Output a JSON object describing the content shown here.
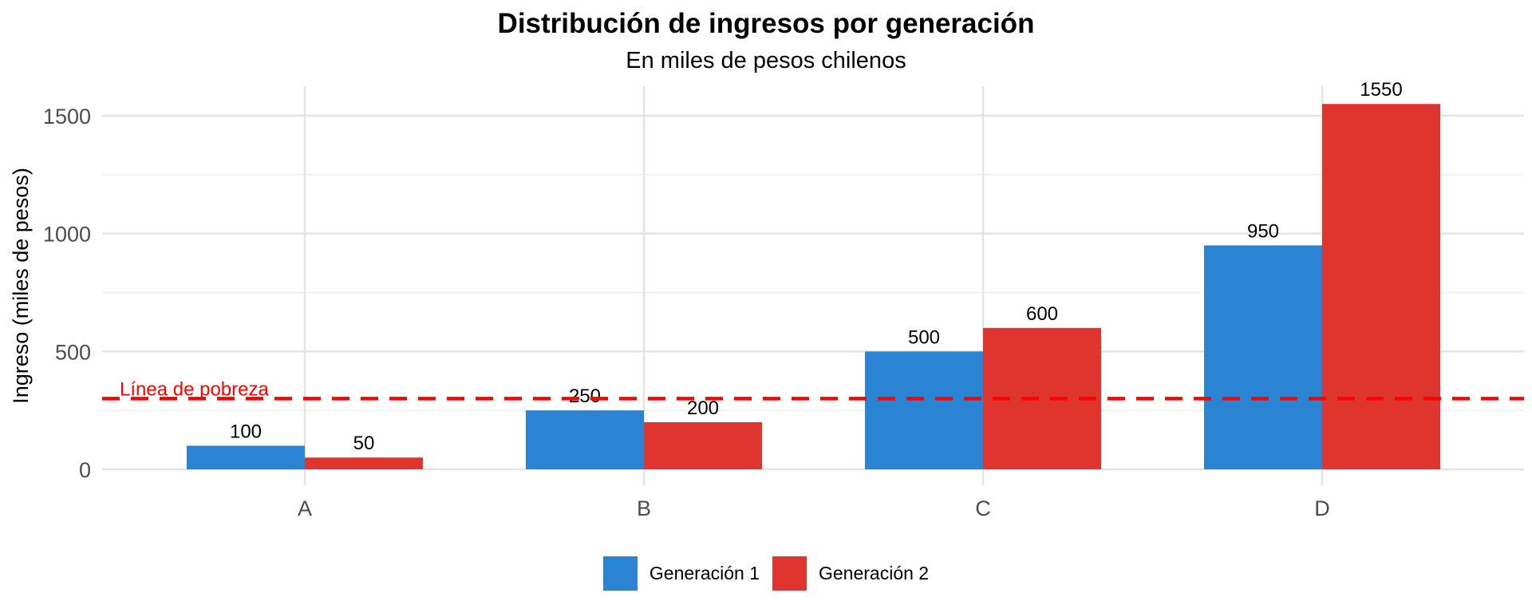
{
  "chart_data": {
    "type": "bar",
    "title": "Distribución de ingresos por generación",
    "subtitle": "En miles de pesos chilenos",
    "xlabel": "",
    "ylabel": "Ingreso (miles de pesos)",
    "categories": [
      "A",
      "B",
      "C",
      "D"
    ],
    "series": [
      {
        "name": "Generación 1",
        "color": "#2B84D3",
        "values": [
          100,
          250,
          500,
          950
        ],
        "labels": [
          "100",
          "250",
          "500",
          "950"
        ]
      },
      {
        "name": "Generación 2",
        "color": "#E0342F",
        "values": [
          50,
          200,
          600,
          1550
        ],
        "labels": [
          "50",
          "200",
          "600",
          "1550"
        ]
      }
    ],
    "ylim": [
      -80,
      1630
    ],
    "yticks": [
      0,
      500,
      1000,
      1500
    ],
    "ytick_labels": [
      "0",
      "500",
      "1000",
      "1500"
    ],
    "minor_gridlines": [
      250,
      750,
      1250
    ],
    "grid": true,
    "legend_position": "bottom",
    "reference_line": {
      "value": 300,
      "label": "Línea de pobreza",
      "color": "#FF0000",
      "style": "dashed"
    }
  }
}
